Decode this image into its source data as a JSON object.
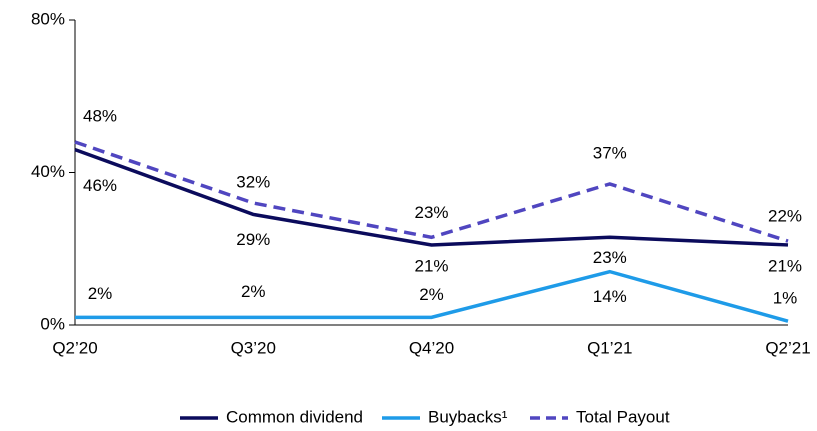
{
  "chart_data": {
    "type": "line",
    "categories": [
      "Q2’20",
      "Q3’20",
      "Q4’20",
      "Q1’21",
      "Q2’21"
    ],
    "series": [
      {
        "name": "Common dividend",
        "color": "#0b0b5c",
        "dash": false,
        "values": [
          46,
          29,
          21,
          23,
          21
        ],
        "value_labels": [
          "46%",
          "29%",
          "21%",
          "23%",
          "21%"
        ]
      },
      {
        "name": "Buybacks¹",
        "color": "#1e9be8",
        "dash": false,
        "values": [
          2,
          2,
          2,
          14,
          1
        ],
        "value_labels": [
          "2%",
          "2%",
          "2%",
          "14%",
          "1%"
        ]
      },
      {
        "name": "Total Payout",
        "color": "#5046c0",
        "dash": true,
        "values": [
          48,
          32,
          23,
          37,
          22
        ],
        "value_labels": [
          "48%",
          "32%",
          "23%",
          "37%",
          "22%"
        ]
      }
    ],
    "ylim": [
      0,
      80
    ],
    "yticks": [
      {
        "value": 0,
        "label": "0%"
      },
      {
        "value": 40,
        "label": "40%"
      },
      {
        "value": 80,
        "label": "80%"
      }
    ]
  }
}
